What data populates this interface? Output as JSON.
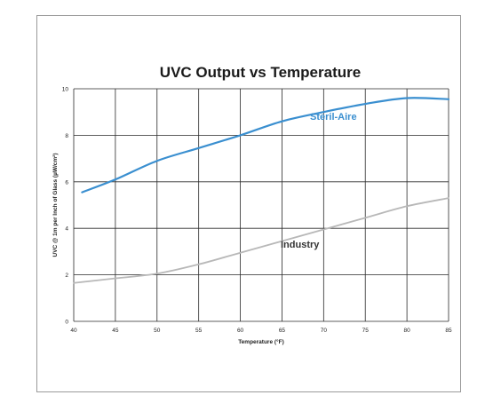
{
  "chart_data": {
    "type": "line",
    "title": "UVC Output vs Temperature",
    "xlabel": "Temperature (°F)",
    "ylabel": "UVC @ 1m per Inch of Glass (µW/cm²)",
    "xlim": [
      40,
      85
    ],
    "ylim": [
      0,
      10
    ],
    "x_ticks": [
      40,
      45,
      50,
      55,
      60,
      65,
      70,
      75,
      80,
      85
    ],
    "y_ticks": [
      0,
      2,
      4,
      6,
      8,
      10
    ],
    "grid": true,
    "series": [
      {
        "name": "Steril-Aire",
        "color": "#3a8fd0",
        "x": [
          41,
          45,
          50,
          55,
          60,
          65,
          70,
          75,
          80,
          85
        ],
        "values": [
          5.55,
          6.1,
          6.9,
          7.45,
          8.0,
          8.6,
          9.0,
          9.35,
          9.6,
          9.55
        ]
      },
      {
        "name": "Industry",
        "color": "#b8b8b8",
        "x": [
          40,
          45,
          50,
          55,
          60,
          65,
          70,
          75,
          80,
          85
        ],
        "values": [
          1.65,
          1.85,
          2.05,
          2.45,
          2.95,
          3.45,
          3.95,
          4.45,
          4.95,
          5.3
        ]
      }
    ]
  }
}
